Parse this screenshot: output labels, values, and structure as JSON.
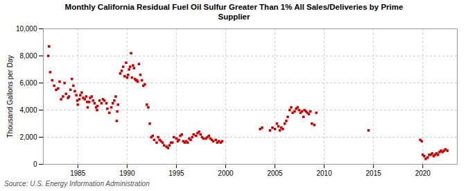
{
  "chart_data": {
    "type": "scatter",
    "title": "Monthly California Residual Fuel Oil Sulfur Greater Than 1% All Sales/Deliveries by Prime\nSupplier",
    "ylabel": "Thousand Gallons per Day",
    "annotations": [
      "Source: U.S. Energy Information Administration"
    ],
    "color": "#cc0000",
    "marker": "square",
    "grid": true,
    "xlim": [
      1981.5,
      2023.5
    ],
    "ylim": [
      0,
      10000
    ],
    "xticks": [
      1985,
      1990,
      1995,
      2000,
      2005,
      2010,
      2015,
      2020
    ],
    "yticks": [
      0,
      {
        "value": 2000,
        "label": "2,000"
      },
      {
        "value": 4000,
        "label": "4,000"
      },
      {
        "value": 6000,
        "label": "6,000"
      },
      {
        "value": 8000,
        "label": "8,000"
      },
      {
        "value": 10000,
        "label": "10,000"
      }
    ],
    "x": [
      1982.0,
      1982.08,
      1982.2,
      1982.4,
      1982.6,
      1982.8,
      1983.0,
      1983.15,
      1983.3,
      1983.5,
      1983.65,
      1983.8,
      1984.0,
      1984.1,
      1984.25,
      1984.4,
      1984.55,
      1984.7,
      1984.85,
      1984.95,
      1985.0,
      1985.15,
      1985.25,
      1985.4,
      1985.55,
      1985.7,
      1985.85,
      1985.95,
      1986.0,
      1986.15,
      1986.25,
      1986.4,
      1986.55,
      1986.7,
      1986.85,
      1986.95,
      1987.0,
      1987.2,
      1987.4,
      1987.55,
      1987.7,
      1987.9,
      1988.0,
      1988.2,
      1988.4,
      1988.55,
      1988.7,
      1988.85,
      1988.95,
      1989.0,
      1989.08,
      1989.3,
      1989.45,
      1989.6,
      1989.75,
      1989.9,
      1990.0,
      1990.1,
      1990.2,
      1990.3,
      1990.4,
      1990.5,
      1990.6,
      1990.7,
      1990.8,
      1990.9,
      1991.0,
      1991.08,
      1991.2,
      1991.35,
      1991.5,
      1991.65,
      1991.8,
      1992.0,
      1992.15,
      1992.3,
      1992.45,
      1992.6,
      1992.75,
      1993.0,
      1993.15,
      1993.3,
      1993.45,
      1993.6,
      1993.75,
      1994.0,
      1994.15,
      1994.3,
      1994.45,
      1994.6,
      1994.75,
      1995.0,
      1995.15,
      1995.25,
      1995.4,
      1995.55,
      1995.7,
      1995.85,
      1996.0,
      1996.15,
      1996.3,
      1996.45,
      1996.6,
      1996.75,
      1997.0,
      1997.15,
      1997.3,
      1997.45,
      1997.6,
      1997.75,
      1998.0,
      1998.15,
      1998.3,
      1998.45,
      1998.6,
      1998.75,
      1999.0,
      1999.15,
      1999.3,
      1999.5,
      1999.65,
      2003.5,
      2003.7,
      2004.5,
      2004.75,
      2005.0,
      2005.2,
      2005.35,
      2005.5,
      2005.65,
      2005.8,
      2006.0,
      2006.15,
      2006.3,
      2006.5,
      2006.65,
      2006.8,
      2007.0,
      2007.15,
      2007.3,
      2007.45,
      2007.6,
      2007.75,
      2007.9,
      2008.0,
      2008.15,
      2008.3,
      2008.45,
      2008.6,
      2008.75,
      2009.0,
      2009.2,
      2014.5,
      2019.75,
      2019.9,
      2020.0,
      2020.15,
      2020.3,
      2020.5,
      2020.65,
      2020.8,
      2020.95,
      2021.1,
      2021.25,
      2021.4,
      2021.55,
      2021.7,
      2021.85,
      2022.0,
      2022.15,
      2022.3,
      2022.5
    ],
    "values": [
      8000,
      8700,
      6800,
      6200,
      5800,
      5500,
      5600,
      6100,
      4800,
      5000,
      6000,
      5200,
      4900,
      5000,
      5500,
      6300,
      5800,
      5400,
      5100,
      4700,
      4400,
      4800,
      5100,
      5300,
      4900,
      4800,
      5000,
      4600,
      4200,
      4600,
      4900,
      5000,
      4700,
      4500,
      4200,
      4000,
      4300,
      4700,
      4500,
      4800,
      4700,
      4500,
      4100,
      3800,
      4200,
      4500,
      4700,
      5000,
      3200,
      3900,
      4400,
      6700,
      6900,
      7200,
      6500,
      7500,
      6400,
      6600,
      7000,
      7200,
      8200,
      6400,
      7300,
      7100,
      6300,
      6200,
      6200,
      6100,
      7400,
      6600,
      6200,
      5800,
      5900,
      4400,
      4200,
      3000,
      2000,
      2100,
      1800,
      1600,
      2000,
      1800,
      1700,
      1600,
      1400,
      1300,
      1200,
      1400,
      1600,
      1600,
      2000,
      1900,
      1700,
      1800,
      2100,
      2200,
      1700,
      1600,
      1700,
      1600,
      1900,
      1800,
      2000,
      2200,
      2100,
      2300,
      2400,
      2200,
      2000,
      1900,
      1900,
      2000,
      2100,
      1900,
      1800,
      1700,
      1800,
      1600,
      1700,
      1600,
      1700,
      2600,
      2700,
      2500,
      2700,
      2600,
      3000,
      2800,
      2500,
      2700,
      2600,
      3000,
      3200,
      3500,
      4000,
      4200,
      3800,
      3900,
      4100,
      4200,
      4000,
      3800,
      3900,
      3500,
      4000,
      3900,
      3800,
      3700,
      3900,
      3000,
      2900,
      3800,
      2500,
      1800,
      1700,
      700,
      600,
      400,
      500,
      700,
      700,
      800,
      600,
      700,
      800,
      700,
      900,
      1000,
      900,
      1000,
      1100,
      1000
    ]
  }
}
